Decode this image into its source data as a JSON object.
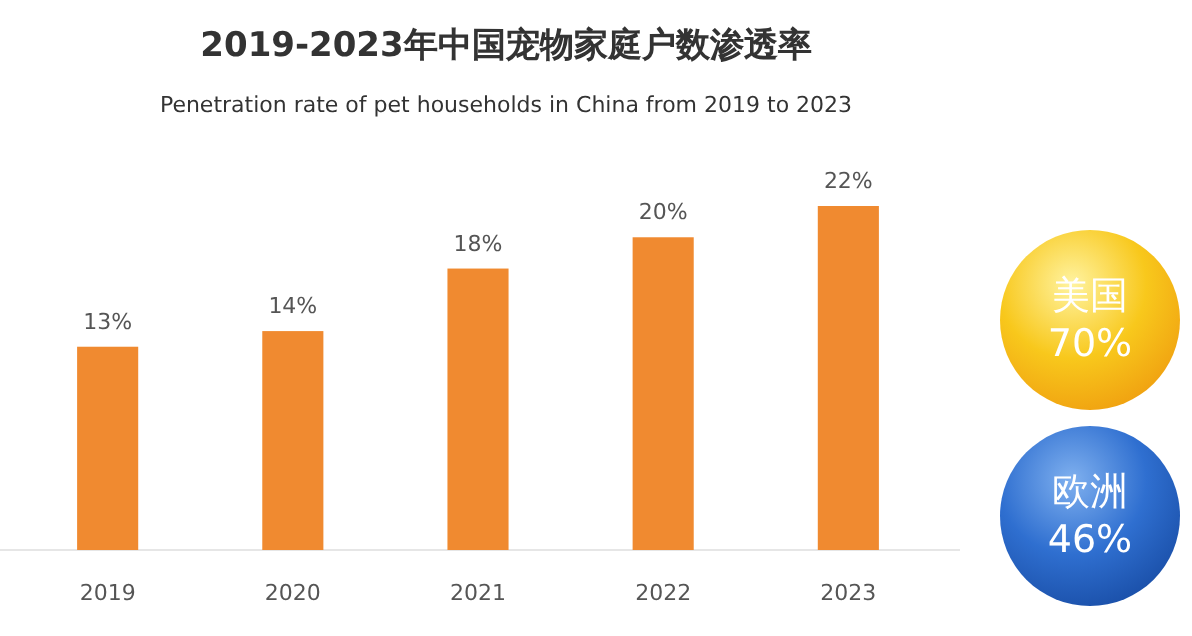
{
  "chart_data": {
    "type": "bar",
    "title": "2019-2023年中国宠物家庭户数渗透率",
    "subtitle": "Penetration rate of pet households in China from 2019 to 2023",
    "categories": [
      "2019",
      "2020",
      "2021",
      "2022",
      "2023"
    ],
    "values": [
      13,
      14,
      18,
      20,
      22
    ],
    "color": "#f08a30",
    "data_labels": true,
    "value_labels": [
      "13%",
      "14%",
      "18%",
      "20%",
      "22%"
    ],
    "annotations": [
      "美国 70%",
      "欧洲 46%"
    ]
  }
}
